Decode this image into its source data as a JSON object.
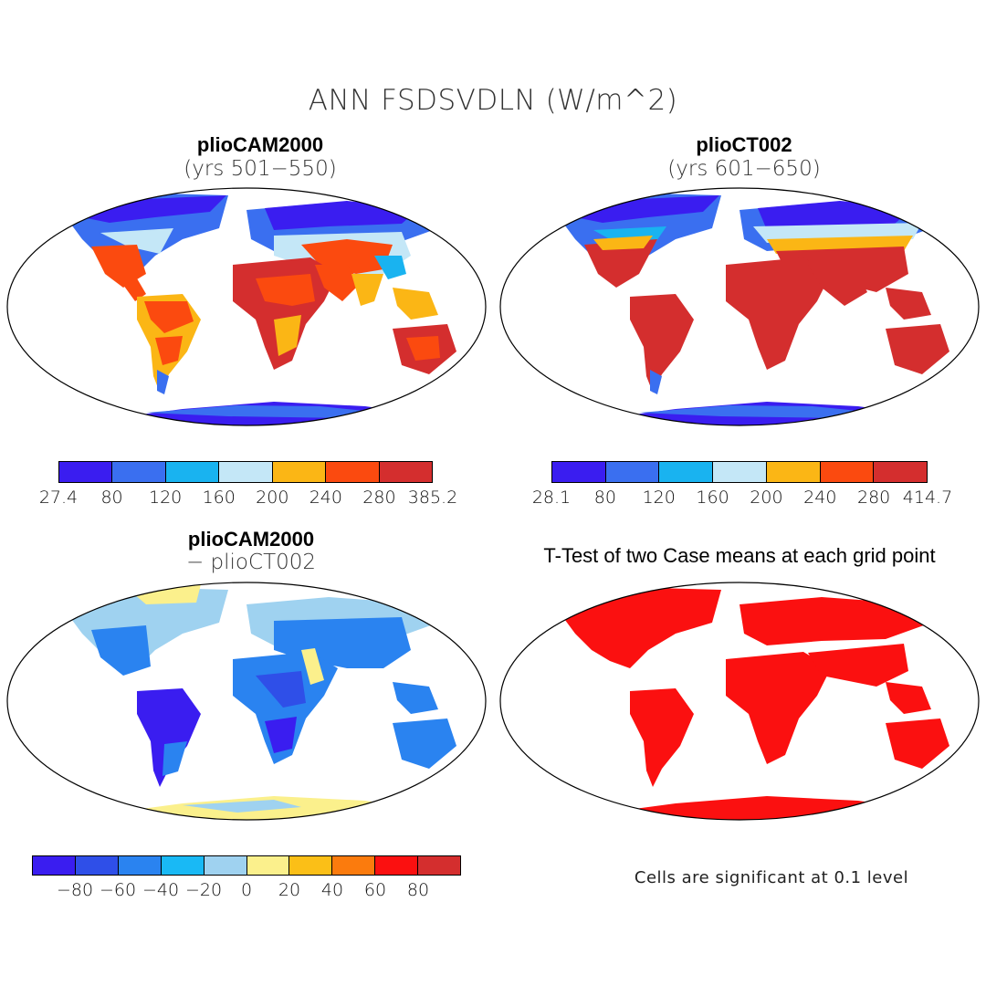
{
  "figure_title": "ANN FSDSVDLN (W/m^2)",
  "panels": {
    "top_left": {
      "title": "plioCAM2000",
      "subtitle": "(yrs 501−550)"
    },
    "top_right": {
      "title": "plioCT002",
      "subtitle": "(yrs 601−650)"
    },
    "bottom_left": {
      "title": "plioCAM2000",
      "subtitle": "− plioCT002"
    },
    "bottom_right": {
      "title": "T-Test of two Case means at each grid point"
    }
  },
  "colorbars": {
    "top_left": {
      "colors": [
        "#3a1df0",
        "#3a6ff0",
        "#19b3f0",
        "#c4e7f7",
        "#fbb615",
        "#fb4a0f",
        "#d42e2e"
      ],
      "labels": [
        "27.4",
        "80",
        "120",
        "160",
        "200",
        "240",
        "280",
        "385.2"
      ]
    },
    "top_right": {
      "colors": [
        "#3a1df0",
        "#3a6ff0",
        "#19b3f0",
        "#c4e7f7",
        "#fbb615",
        "#fb4a0f",
        "#d42e2e"
      ],
      "labels": [
        "28.1",
        "80",
        "120",
        "160",
        "200",
        "240",
        "280",
        "414.7"
      ]
    },
    "bottom_left": {
      "colors": [
        "#3a1df0",
        "#2f4fe8",
        "#2a83f0",
        "#19b9f5",
        "#9fd2f0",
        "#fbf08c",
        "#fbbf17",
        "#fb7b0d",
        "#fb1010",
        "#d42e2e"
      ],
      "labels": [
        "−80",
        "−60",
        "−40",
        "−20",
        "0",
        "20",
        "40",
        "60",
        "80"
      ]
    }
  },
  "significance_note": "Cells are significant at 0.1 level"
}
